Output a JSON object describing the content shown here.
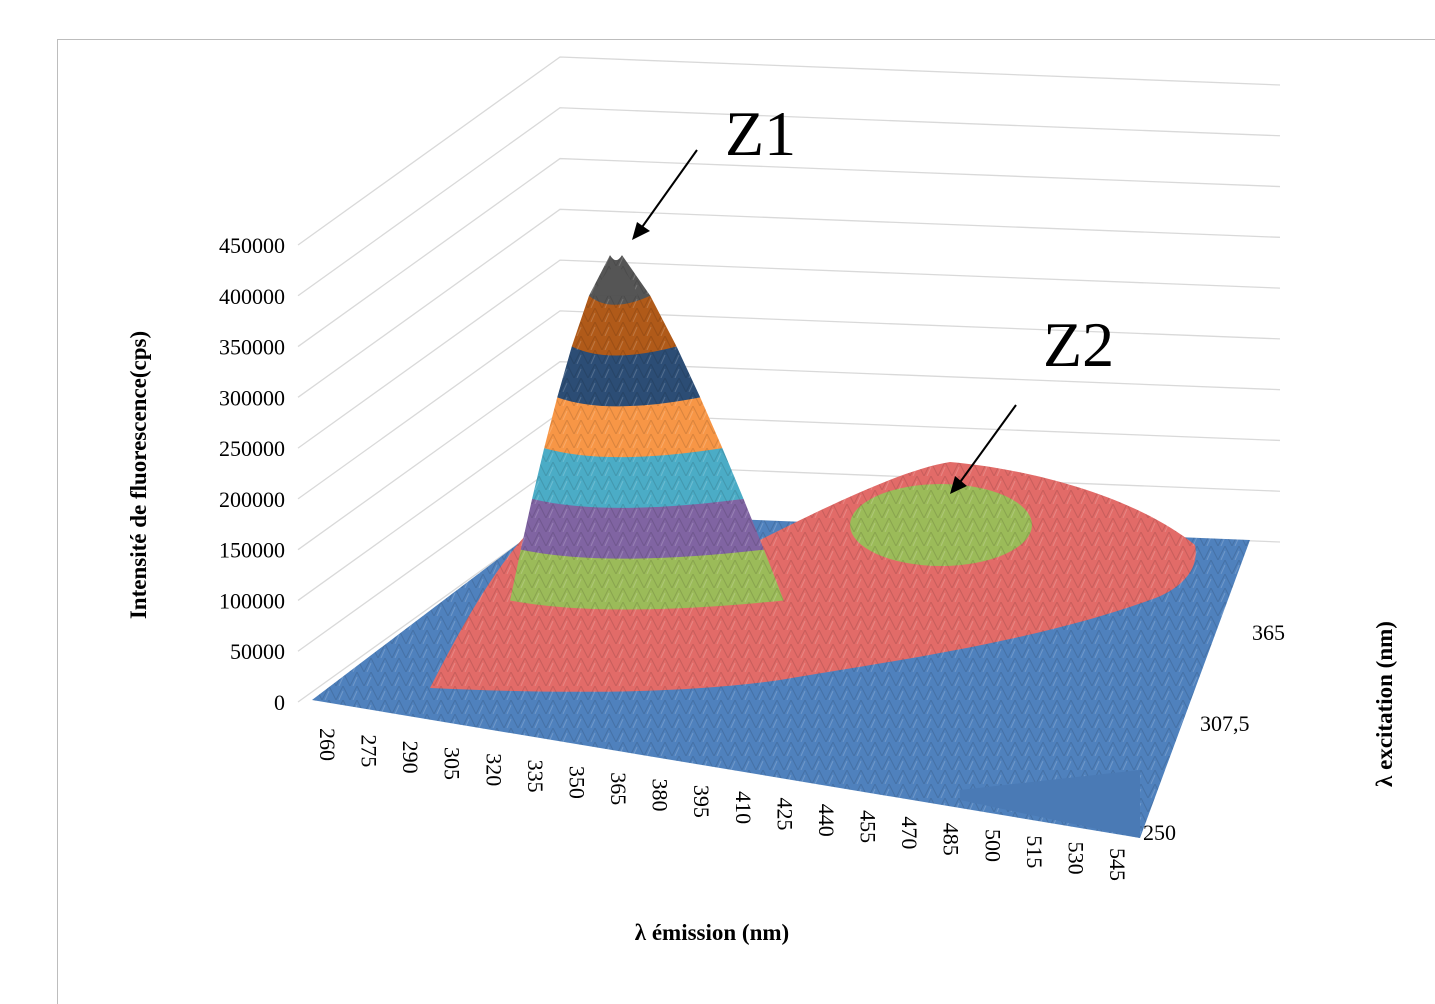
{
  "chart_data": {
    "type": "surface",
    "z_ticks": [
      "0",
      "50000",
      "100000",
      "150000",
      "200000",
      "250000",
      "300000",
      "350000",
      "400000",
      "450000"
    ],
    "z_range": [
      0,
      450000
    ],
    "z_label": "Intensité  de fluorescence(cps)",
    "x_ticks": [
      "260",
      "275",
      "290",
      "305",
      "320",
      "335",
      "350",
      "365",
      "380",
      "395",
      "410",
      "425",
      "440",
      "455",
      "470",
      "485",
      "500",
      "515",
      "530",
      "545"
    ],
    "x_label": "λ émission (nm)",
    "y_ticks": [
      "250",
      "307,5",
      "365"
    ],
    "y_label": "λ excitation (nm)",
    "band_step": 50000,
    "band_colors": [
      "#4f81bd",
      "#e26b68",
      "#9bbb59",
      "#8064a2",
      "#4bacc6",
      "#f79646",
      "#2c4d75",
      "#b05a19",
      "#555555"
    ],
    "peaks": [
      {
        "label": "Z1",
        "emission": 350,
        "excitation": 250,
        "intensity": 440000
      },
      {
        "label": "Z2",
        "emission": 460,
        "excitation": 365,
        "intensity": 105000
      }
    ],
    "grid": true
  },
  "annotations": {
    "z1": "Z1",
    "z2": "Z2"
  }
}
